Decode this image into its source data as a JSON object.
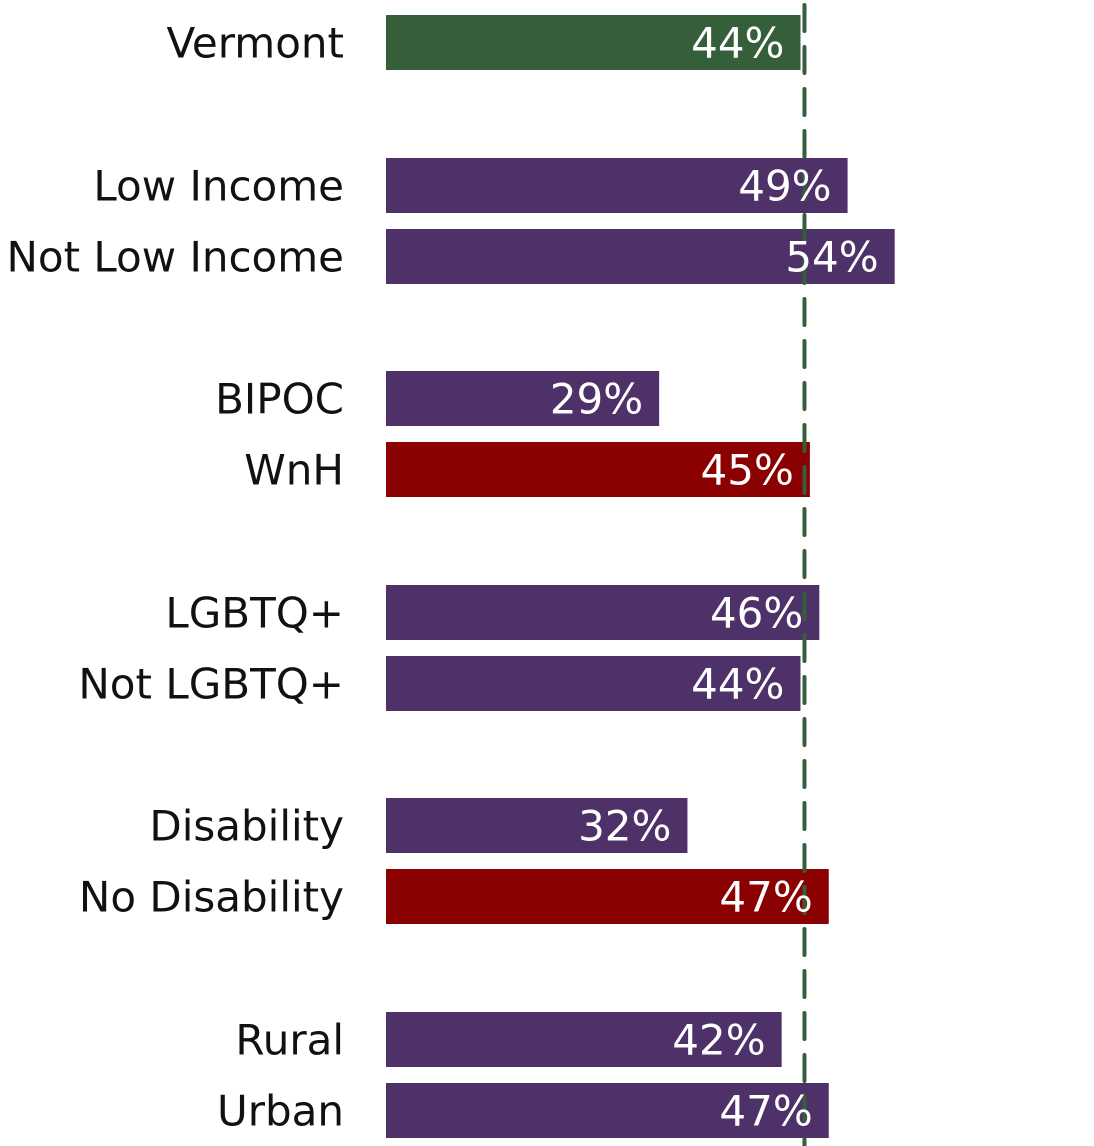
{
  "chart_data": {
    "type": "bar",
    "orientation": "horizontal",
    "title": "",
    "xlabel": "",
    "ylabel": "",
    "xlim": [
      0,
      100
    ],
    "grid": false,
    "legend": "none",
    "reference_line": {
      "value": 44,
      "style": "dashed",
      "color": "#355E3B"
    },
    "colors": {
      "state": "#355E3B",
      "group": "#4E3168",
      "reference_group": "#8B0000"
    },
    "categories": [
      "Vermont",
      "Low Income",
      "Not Low Income",
      "BIPOC",
      "WnH",
      "LGBTQ+",
      "Not LGBTQ+",
      "Disability",
      "No Disability",
      "Rural",
      "Urban"
    ],
    "values": [
      44,
      49,
      54,
      29,
      45,
      46,
      44,
      32,
      47,
      42,
      47
    ],
    "value_labels": [
      "44%",
      "49%",
      "54%",
      "29%",
      "45%",
      "46%",
      "44%",
      "32%",
      "47%",
      "42%",
      "47%"
    ],
    "bar_colors": [
      "state",
      "group",
      "group",
      "group",
      "reference_group",
      "group",
      "group",
      "group",
      "reference_group",
      "group",
      "group"
    ]
  }
}
